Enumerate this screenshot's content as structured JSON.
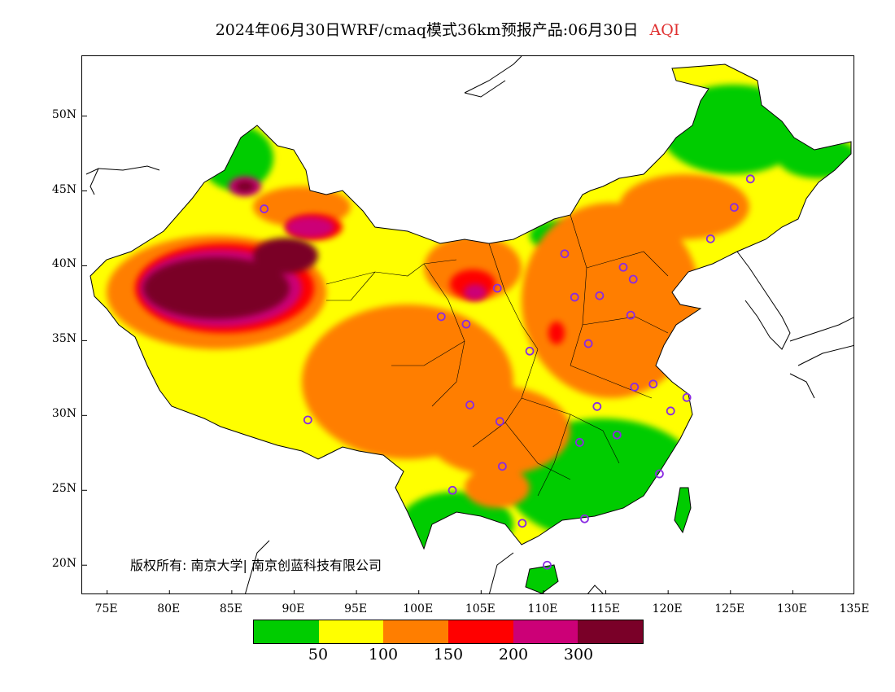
{
  "title": {
    "main": "2024年06月30日WRF/cmaq模式36km预报产品:06月30日",
    "variable": "AQI"
  },
  "axes": {
    "lat_labels": [
      "50N",
      "45N",
      "40N",
      "35N",
      "30N",
      "25N",
      "20N"
    ],
    "lon_labels": [
      "75E",
      "80E",
      "85E",
      "90E",
      "95E",
      "100E",
      "105E",
      "110E",
      "115E",
      "120E",
      "125E",
      "130E",
      "135E"
    ],
    "lat_values": [
      50,
      45,
      40,
      35,
      30,
      25,
      20
    ],
    "lon_values": [
      75,
      80,
      85,
      90,
      95,
      100,
      105,
      110,
      115,
      120,
      125,
      130,
      135
    ],
    "lon_range": [
      73,
      135
    ],
    "lat_range": [
      18,
      54
    ]
  },
  "copyright": "版权所有: 南京大学| 南京创蓝科技有限公司",
  "legend": {
    "colors": [
      "#00cc00",
      "#ffff00",
      "#ff7e00",
      "#ff0000",
      "#cc0077",
      "#7a0028"
    ],
    "labels": [
      "50",
      "100",
      "150",
      "200",
      "300"
    ]
  },
  "colors": {
    "good": "#00cc00",
    "moderate": "#ffff00",
    "usg": "#ff7e00",
    "unhealthy": "#ff0000",
    "very_unhealthy": "#cc0077",
    "hazardous": "#7a0028",
    "station_marker": "#8a2be2"
  },
  "stations": [
    [
      126.6,
      45.8
    ],
    [
      125.3,
      43.9
    ],
    [
      123.4,
      41.8
    ],
    [
      87.6,
      43.8
    ],
    [
      111.7,
      40.8
    ],
    [
      116.4,
      39.9
    ],
    [
      117.2,
      39.1
    ],
    [
      106.3,
      38.5
    ],
    [
      112.5,
      37.9
    ],
    [
      114.5,
      38.0
    ],
    [
      101.8,
      36.6
    ],
    [
      103.8,
      36.1
    ],
    [
      117.0,
      36.7
    ],
    [
      108.9,
      34.3
    ],
    [
      113.6,
      34.8
    ],
    [
      117.3,
      31.9
    ],
    [
      118.8,
      32.1
    ],
    [
      121.5,
      31.2
    ],
    [
      120.2,
      30.3
    ],
    [
      114.3,
      30.6
    ],
    [
      104.1,
      30.7
    ],
    [
      106.5,
      29.6
    ],
    [
      91.1,
      29.7
    ],
    [
      112.9,
      28.2
    ],
    [
      115.9,
      28.7
    ],
    [
      106.7,
      26.6
    ],
    [
      119.3,
      26.1
    ],
    [
      102.7,
      25.0
    ],
    [
      108.3,
      22.8
    ],
    [
      113.3,
      23.1
    ],
    [
      110.3,
      20.0
    ]
  ]
}
